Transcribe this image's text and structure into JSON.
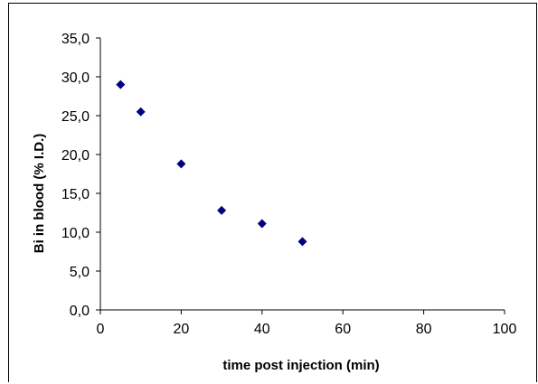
{
  "chart_data": {
    "type": "scatter",
    "title": "",
    "xlabel": "time post injection (min)",
    "ylabel": "Bi in blood (% I.D.)",
    "xlim": [
      0,
      100
    ],
    "ylim": [
      0,
      35
    ],
    "xticks": [
      0,
      20,
      40,
      60,
      80,
      100
    ],
    "xtick_labels": [
      "0",
      "20",
      "40",
      "60",
      "80",
      "100"
    ],
    "yticks": [
      0,
      5,
      10,
      15,
      20,
      25,
      30,
      35
    ],
    "ytick_labels": [
      "0,0",
      "5,0",
      "10,0",
      "15,0",
      "20,0",
      "25,0",
      "30,0",
      "35,0"
    ],
    "grid": false,
    "legend": "none",
    "marker": "diamond",
    "marker_color": "#000080",
    "series": [
      {
        "x": [
          5,
          10,
          20,
          30,
          40,
          50
        ],
        "y": [
          29.0,
          25.5,
          18.8,
          12.8,
          11.1,
          8.8
        ]
      }
    ]
  }
}
